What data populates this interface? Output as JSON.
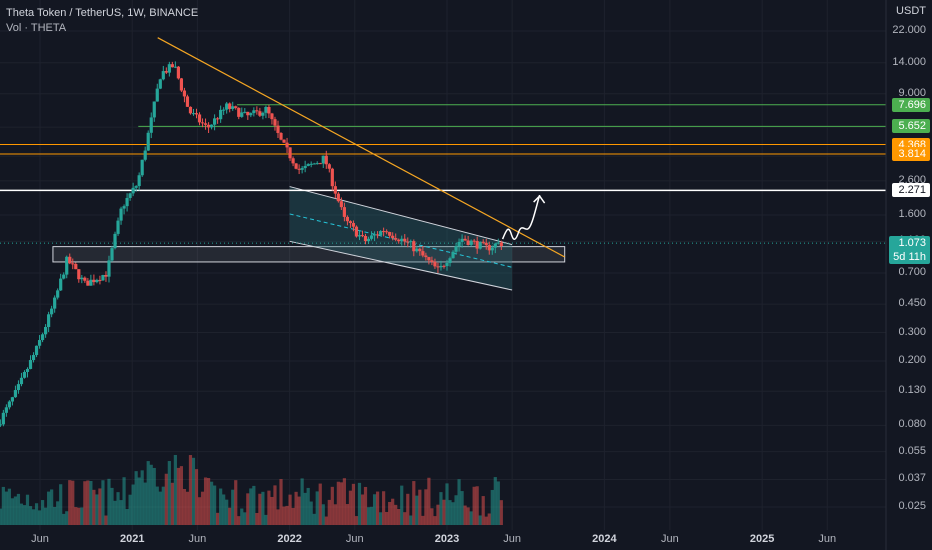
{
  "legend": {
    "symbol": "Theta Token / TetherUS, 1W, BINANCE",
    "volume": "Vol · THETA"
  },
  "colors": {
    "background": "#131722",
    "up": "#26a69a",
    "down": "#ef5350",
    "trendline": "#f5a623",
    "green_level": "#4caf50",
    "orange_level": "#ff9800",
    "white_level": "#ffffff",
    "channel_fill": "#2a6b73"
  },
  "chart_data": {
    "type": "candlestick",
    "title": "Theta Token / TetherUS, 1W, BINANCE",
    "ylabel": "USDT",
    "y_scale": "log",
    "ylim": [
      0.02,
      28
    ],
    "y_ticks": [
      "22.000",
      "14.000",
      "9.000",
      "5.600",
      "3.700",
      "2.600",
      "1.600",
      "1.100",
      "0.700",
      "0.450",
      "0.300",
      "0.200",
      "0.130",
      "0.080",
      "0.055",
      "0.037",
      "0.025"
    ],
    "x_ticks": [
      "Jun",
      "2021",
      "Jun",
      "2022",
      "Jun",
      "2023",
      "Jun",
      "2024",
      "Jun",
      "2025",
      "Jun"
    ],
    "x_range": [
      "2020-03-01",
      "2025-09-01"
    ],
    "price_anchors": [
      {
        "date": "2020-03-01",
        "price": 0.08
      },
      {
        "date": "2020-04-15",
        "price": 0.13
      },
      {
        "date": "2020-06-01",
        "price": 0.24
      },
      {
        "date": "2020-07-10",
        "price": 0.45
      },
      {
        "date": "2020-08-10",
        "price": 0.85
      },
      {
        "date": "2020-09-20",
        "price": 0.6
      },
      {
        "date": "2020-11-10",
        "price": 0.7
      },
      {
        "date": "2020-12-15",
        "price": 1.8
      },
      {
        "date": "2021-01-20",
        "price": 2.5
      },
      {
        "date": "2021-02-20",
        "price": 6.0
      },
      {
        "date": "2021-03-15",
        "price": 12.0
      },
      {
        "date": "2021-04-15",
        "price": 13.5
      },
      {
        "date": "2021-05-20",
        "price": 7.0
      },
      {
        "date": "2021-07-01",
        "price": 5.5
      },
      {
        "date": "2021-08-15",
        "price": 7.5
      },
      {
        "date": "2021-10-01",
        "price": 6.5
      },
      {
        "date": "2021-11-15",
        "price": 7.2
      },
      {
        "date": "2021-12-20",
        "price": 4.5
      },
      {
        "date": "2022-02-01",
        "price": 3.0
      },
      {
        "date": "2022-03-30",
        "price": 3.6
      },
      {
        "date": "2022-05-15",
        "price": 1.5
      },
      {
        "date": "2022-07-01",
        "price": 1.1
      },
      {
        "date": "2022-08-15",
        "price": 1.3
      },
      {
        "date": "2022-10-15",
        "price": 1.05
      },
      {
        "date": "2022-12-20",
        "price": 0.72
      },
      {
        "date": "2023-02-10",
        "price": 1.15
      },
      {
        "date": "2023-04-10",
        "price": 1.0
      },
      {
        "date": "2023-05-10",
        "price": 1.073
      }
    ],
    "levels": [
      {
        "label": "7.696",
        "price": 7.696,
        "kind": "green"
      },
      {
        "label": "5.652",
        "price": 5.652,
        "kind": "green"
      },
      {
        "label": "4.368",
        "price": 4.368,
        "kind": "orange"
      },
      {
        "label": "3.814",
        "price": 3.814,
        "kind": "orange"
      },
      {
        "label": "2.271",
        "price": 2.271,
        "kind": "white"
      }
    ],
    "current_price": {
      "label": "1.073",
      "price": 1.073,
      "countdown": "5d 11h"
    },
    "trendline": [
      {
        "date": "2021-03-01",
        "price": 20.0
      },
      {
        "date": "2023-10-01",
        "price": 0.88
      }
    ],
    "channel_upper": [
      {
        "date": "2022-01-01",
        "price": 2.4
      },
      {
        "date": "2023-06-01",
        "price": 1.05
      }
    ],
    "channel_lower": [
      {
        "date": "2022-01-01",
        "price": 1.1
      },
      {
        "date": "2023-06-01",
        "price": 0.55
      }
    ],
    "support_zone": {
      "from": "2020-07-01",
      "to": "2023-10-01",
      "low": 0.82,
      "high": 1.02
    }
  }
}
